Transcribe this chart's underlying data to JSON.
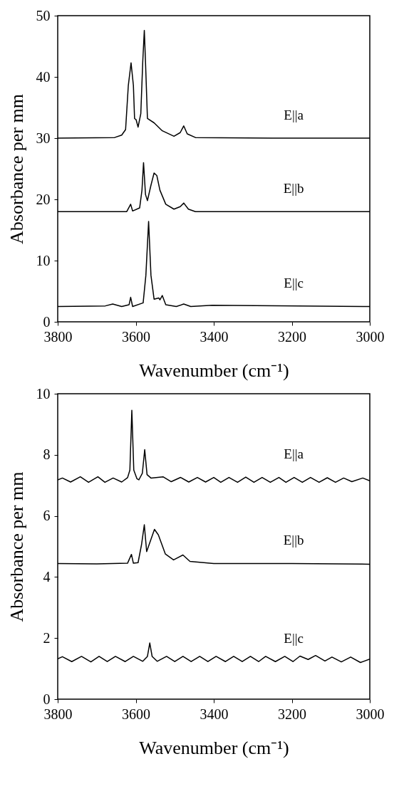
{
  "chart_data": [
    {
      "type": "line",
      "xlabel": "Wavenumber (cm⁻¹)",
      "ylabel": "Absorbance per mm",
      "xlim": [
        3800,
        3000
      ],
      "xticks": [
        3800,
        3600,
        3400,
        3200,
        3000
      ],
      "ylim": [
        0,
        50
      ],
      "yticks": [
        0,
        10,
        20,
        30,
        40,
        50
      ],
      "grid": false,
      "legend": false,
      "marker": "none",
      "line_style": "solid",
      "series": [
        {
          "name": "E||a",
          "color": "#000000",
          "x": [
            3800,
            3654,
            3636,
            3626,
            3619,
            3612,
            3606,
            3603,
            3599,
            3594,
            3587,
            3582,
            3578,
            3575,
            3570,
            3553,
            3532,
            3502,
            3486,
            3477,
            3468,
            3447,
            3252,
            3000
          ],
          "values": [
            30.0,
            30.1,
            30.5,
            31.4,
            38.6,
            42.3,
            38.6,
            33.2,
            33.0,
            31.8,
            34.0,
            42.5,
            47.6,
            42.5,
            33.2,
            32.5,
            31.2,
            30.3,
            30.9,
            32.0,
            30.7,
            30.1,
            30.0,
            30.0
          ]
        },
        {
          "name": "E||b",
          "color": "#000000",
          "x": [
            3800,
            3623,
            3613,
            3608,
            3590,
            3584,
            3580,
            3575,
            3570,
            3561,
            3553,
            3546,
            3538,
            3523,
            3502,
            3486,
            3477,
            3465,
            3447,
            3000
          ],
          "values": [
            18.0,
            18.0,
            19.2,
            18.1,
            18.6,
            21.5,
            26.0,
            20.8,
            19.8,
            22.3,
            24.3,
            23.9,
            21.5,
            19.2,
            18.4,
            18.8,
            19.4,
            18.4,
            18.0,
            18.0
          ]
        },
        {
          "name": "E||c",
          "color": "#000000",
          "x": [
            3800,
            3678,
            3659,
            3636,
            3617,
            3613,
            3608,
            3581,
            3574,
            3567,
            3561,
            3553,
            3541,
            3538,
            3532,
            3523,
            3496,
            3477,
            3459,
            3404,
            3000
          ],
          "values": [
            2.5,
            2.6,
            2.9,
            2.5,
            2.8,
            4.0,
            2.5,
            3.1,
            7.6,
            16.4,
            7.6,
            3.7,
            3.9,
            3.6,
            4.3,
            2.8,
            2.5,
            2.9,
            2.5,
            2.7,
            2.5
          ]
        }
      ]
    },
    {
      "type": "line",
      "xlabel": "Wavenumber (cm⁻¹)",
      "ylabel": "Absorbance per mm",
      "xlim": [
        3800,
        3000
      ],
      "xticks": [
        3800,
        3600,
        3400,
        3200,
        3000
      ],
      "ylim": [
        0,
        10
      ],
      "yticks": [
        0,
        2,
        4,
        6,
        8,
        10
      ],
      "grid": false,
      "legend": false,
      "marker": "none",
      "line_style": "solid",
      "series": [
        {
          "name": "E||a",
          "color": "#000000",
          "x": [
            3800,
            3788,
            3767,
            3742,
            3721,
            3697,
            3679,
            3658,
            3636,
            3621,
            3615,
            3610,
            3605,
            3597,
            3592,
            3583,
            3577,
            3571,
            3561,
            3530,
            3509,
            3485,
            3464,
            3442,
            3421,
            3400,
            3382,
            3361,
            3339,
            3318,
            3297,
            3276,
            3255,
            3233,
            3215,
            3194,
            3173,
            3152,
            3130,
            3109,
            3088,
            3067,
            3046,
            3018,
            3000
          ],
          "values": [
            7.18,
            7.24,
            7.11,
            7.28,
            7.1,
            7.28,
            7.1,
            7.24,
            7.11,
            7.25,
            7.5,
            9.46,
            7.5,
            7.22,
            7.18,
            7.4,
            8.17,
            7.35,
            7.24,
            7.28,
            7.12,
            7.26,
            7.11,
            7.26,
            7.11,
            7.26,
            7.1,
            7.26,
            7.1,
            7.27,
            7.1,
            7.26,
            7.1,
            7.26,
            7.1,
            7.26,
            7.1,
            7.26,
            7.1,
            7.25,
            7.1,
            7.24,
            7.12,
            7.24,
            7.15
          ]
        },
        {
          "name": "E||b",
          "color": "#000000",
          "x": [
            3800,
            3700,
            3621,
            3611,
            3606,
            3594,
            3585,
            3578,
            3572,
            3552,
            3542,
            3524,
            3503,
            3479,
            3461,
            3400,
            3200,
            3000
          ],
          "values": [
            4.44,
            4.43,
            4.45,
            4.74,
            4.45,
            4.47,
            5.07,
            5.71,
            4.83,
            5.56,
            5.38,
            4.75,
            4.56,
            4.72,
            4.51,
            4.44,
            4.44,
            4.42
          ]
        },
        {
          "name": "E||c",
          "color": "#000000",
          "x": [
            3800,
            3788,
            3764,
            3739,
            3715,
            3694,
            3673,
            3652,
            3627,
            3606,
            3582,
            3570,
            3564,
            3558,
            3545,
            3521,
            3500,
            3479,
            3458,
            3436,
            3415,
            3394,
            3370,
            3349,
            3327,
            3306,
            3285,
            3267,
            3242,
            3218,
            3197,
            3179,
            3158,
            3139,
            3115,
            3097,
            3073,
            3049,
            3024,
            3000
          ],
          "values": [
            1.32,
            1.39,
            1.23,
            1.4,
            1.22,
            1.4,
            1.23,
            1.4,
            1.23,
            1.4,
            1.24,
            1.4,
            1.84,
            1.4,
            1.24,
            1.4,
            1.23,
            1.4,
            1.23,
            1.4,
            1.23,
            1.4,
            1.23,
            1.4,
            1.23,
            1.4,
            1.23,
            1.4,
            1.23,
            1.4,
            1.23,
            1.41,
            1.3,
            1.43,
            1.25,
            1.38,
            1.22,
            1.38,
            1.2,
            1.31
          ]
        }
      ]
    }
  ]
}
